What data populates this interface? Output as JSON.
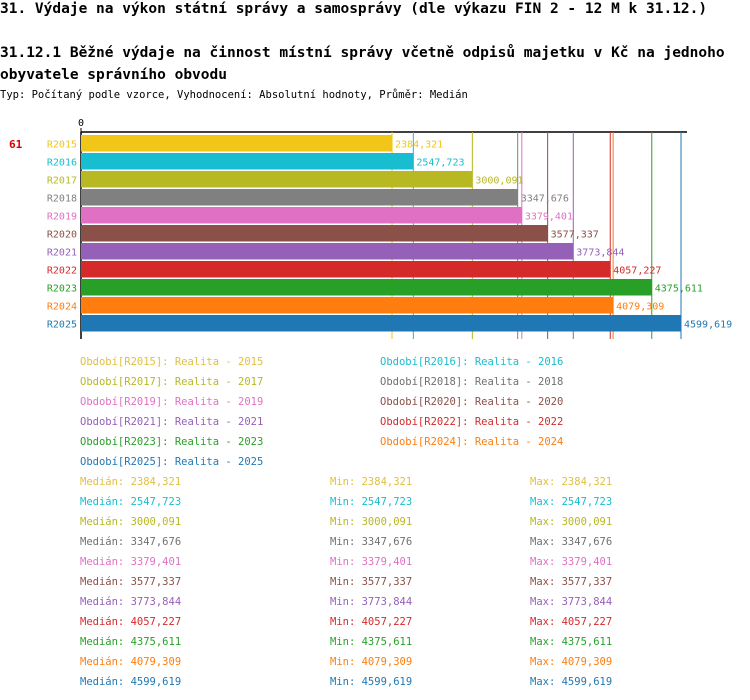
{
  "header": {
    "title": "31. Výdaje na výkon státní správy a samosprávy (dle výkazu FIN 2 - 12 M k 31.12.)",
    "subtitle": "31.12.1 Běžné výdaje na činnost místní správy včetně odpisů majetku v Kč na jednoho obyvatele správního obvodu",
    "info": "Typ: Počítaný podle vzorce, Vyhodnocení: Absolutní hodnoty, Průměr: Medián"
  },
  "chart_data": {
    "type": "bar",
    "orientation": "horizontal",
    "rank_label": "61",
    "axis_zero_label": "0",
    "xlim": [
      0,
      4650
    ],
    "categories": [
      "R2015",
      "R2016",
      "R2017",
      "R2018",
      "R2019",
      "R2020",
      "R2021",
      "R2022",
      "R2023",
      "R2024",
      "R2025"
    ],
    "values": [
      2384.321,
      2547.723,
      3000.091,
      3347.676,
      3379.401,
      3577.337,
      3773.844,
      4057.227,
      4375.611,
      4079.309,
      4599.619
    ],
    "value_labels": [
      "2384,321",
      "2547,723",
      "3000,091",
      "3347,676",
      "3379,401",
      "3577,337",
      "3773,844",
      "4057,227",
      "4375,611",
      "4079,309",
      "4599,619"
    ],
    "colors": [
      "#f2c618",
      "#19bdd0",
      "#b8b823",
      "#808080",
      "#e070c4",
      "#8b5048",
      "#9560b8",
      "#d42a2a",
      "#28a028",
      "#ff7d0e",
      "#1f78b4"
    ]
  },
  "legend": [
    {
      "label": "Období[R2015]: Realita - 2015",
      "color": "#e0c040"
    },
    {
      "label": "Období[R2016]: Realita - 2016",
      "color": "#19bdd0"
    },
    {
      "label": "Období[R2017]: Realita - 2017",
      "color": "#b8b823"
    },
    {
      "label": "Období[R2018]: Realita - 2018",
      "color": "#707070"
    },
    {
      "label": "Období[R2019]: Realita - 2019",
      "color": "#e070c4"
    },
    {
      "label": "Období[R2020]: Realita - 2020",
      "color": "#8b5048"
    },
    {
      "label": "Období[R2021]: Realita - 2021",
      "color": "#9560b8"
    },
    {
      "label": "Období[R2022]: Realita - 2022",
      "color": "#d42a2a"
    },
    {
      "label": "Období[R2023]: Realita - 2023",
      "color": "#28a028"
    },
    {
      "label": "Období[R2024]: Realita - 2024",
      "color": "#ff7d0e"
    },
    {
      "label": "Období[R2025]: Realita - 2025",
      "color": "#1f78b4"
    }
  ],
  "stats": [
    {
      "median": "Medián: 2384,321",
      "min": "Min: 2384,321",
      "max": "Max: 2384,321",
      "color": "#e0c040"
    },
    {
      "median": "Medián: 2547,723",
      "min": "Min: 2547,723",
      "max": "Max: 2547,723",
      "color": "#19bdd0"
    },
    {
      "median": "Medián: 3000,091",
      "min": "Min: 3000,091",
      "max": "Max: 3000,091",
      "color": "#b8b823"
    },
    {
      "median": "Medián: 3347,676",
      "min": "Min: 3347,676",
      "max": "Max: 3347,676",
      "color": "#707070"
    },
    {
      "median": "Medián: 3379,401",
      "min": "Min: 3379,401",
      "max": "Max: 3379,401",
      "color": "#e070c4"
    },
    {
      "median": "Medián: 3577,337",
      "min": "Min: 3577,337",
      "max": "Max: 3577,337",
      "color": "#8b5048"
    },
    {
      "median": "Medián: 3773,844",
      "min": "Min: 3773,844",
      "max": "Max: 3773,844",
      "color": "#9560b8"
    },
    {
      "median": "Medián: 4057,227",
      "min": "Min: 4057,227",
      "max": "Max: 4057,227",
      "color": "#d42a2a"
    },
    {
      "median": "Medián: 4375,611",
      "min": "Min: 4375,611",
      "max": "Max: 4375,611",
      "color": "#28a028"
    },
    {
      "median": "Medián: 4079,309",
      "min": "Min: 4079,309",
      "max": "Max: 4079,309",
      "color": "#ff7d0e"
    },
    {
      "median": "Medián: 4599,619",
      "min": "Min: 4599,619",
      "max": "Max: 4599,619",
      "color": "#1f78b4"
    }
  ]
}
